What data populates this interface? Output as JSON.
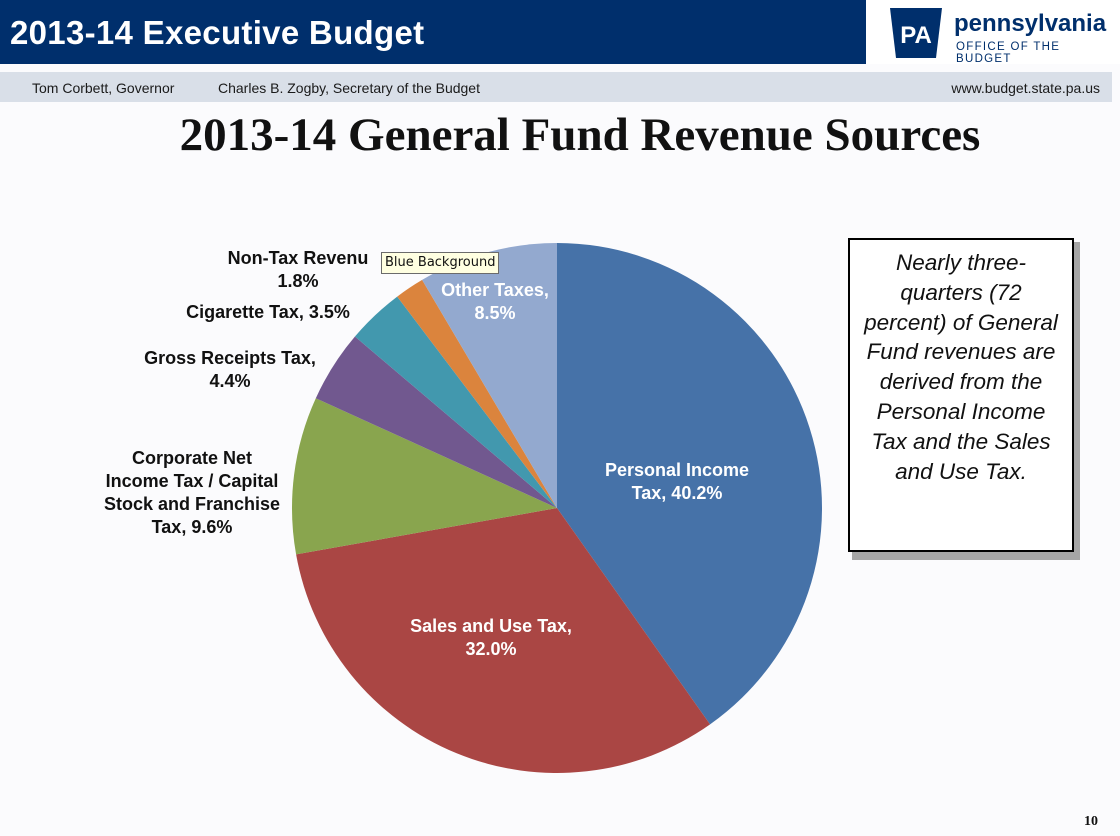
{
  "header": {
    "title": "2013-14 Executive Budget",
    "logo_name": "pennsylvania",
    "logo_subtitle": "OFFICE OF THE BUDGET",
    "logo_mark": "PA"
  },
  "subheader": {
    "governor": "Tom Corbett, Governor",
    "secretary": "Charles B. Zogby, Secretary of the Budget",
    "url": "www.budget.state.pa.us"
  },
  "slide": {
    "title": "2013-14 General Fund Revenue Sources",
    "page_number": "10"
  },
  "callout": {
    "text": "Nearly three-quarters (72 percent) of General Fund revenues are derived from the Personal Income Tax and the Sales and Use Tax."
  },
  "tooltip": {
    "text": "Blue Background"
  },
  "colors": {
    "header_bg": "#002f6c",
    "subheader_bg": "#d9dfe8"
  },
  "chart_data": {
    "type": "pie",
    "title": "2013-14 General Fund Revenue Sources",
    "slices": [
      {
        "label_lines": [
          "Personal Income",
          "Tax, 40.2%"
        ],
        "name": "Personal Income Tax",
        "value": 40.2,
        "color": "#4672a8"
      },
      {
        "label_lines": [
          "Sales and Use Tax,",
          "32.0%"
        ],
        "name": "Sales and Use Tax",
        "value": 32.0,
        "color": "#aa4644"
      },
      {
        "label_lines": [
          "Corporate Net",
          "Income Tax / Capital",
          "Stock and Franchise",
          "Tax, 9.6%"
        ],
        "name": "Corporate Net Income Tax / Capital Stock and Franchise Tax",
        "value": 9.6,
        "color": "#89a54e"
      },
      {
        "label_lines": [
          "Gross Receipts Tax,",
          "4.4%"
        ],
        "name": "Gross Receipts Tax",
        "value": 4.4,
        "color": "#71588f"
      },
      {
        "label_lines": [
          "Cigarette Tax, 3.5%"
        ],
        "name": "Cigarette Tax",
        "value": 3.5,
        "color": "#4298ae"
      },
      {
        "label_lines": [
          "Non-Tax Revenu",
          "1.8%"
        ],
        "name": "Non-Tax Revenue",
        "value": 1.8,
        "color": "#db843d"
      },
      {
        "label_lines": [
          "Other Taxes,",
          "8.5%"
        ],
        "name": "Other Taxes",
        "value": 8.5,
        "color": "#93a9cf"
      }
    ]
  }
}
